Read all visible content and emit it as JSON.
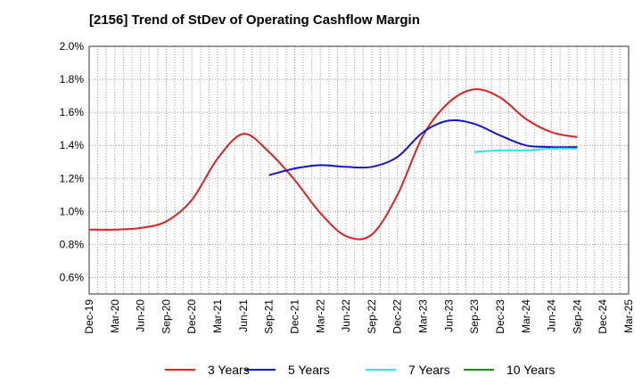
{
  "chart_data": {
    "type": "line",
    "title": "[2156]  Trend of StDev of Operating Cashflow Margin",
    "xlabel": "",
    "ylabel": "",
    "x": [
      "Dec-19",
      "Mar-20",
      "Jun-20",
      "Sep-20",
      "Dec-20",
      "Mar-21",
      "Jun-21",
      "Sep-21",
      "Dec-21",
      "Mar-22",
      "Jun-22",
      "Sep-22",
      "Dec-22",
      "Mar-23",
      "Jun-23",
      "Sep-23",
      "Dec-23",
      "Mar-24",
      "Jun-24",
      "Sep-24",
      "Dec-24",
      "Mar-25"
    ],
    "ylim": [
      0.5,
      2.0
    ],
    "yticks": [
      "0.6%",
      "0.8%",
      "1.0%",
      "1.2%",
      "1.4%",
      "1.6%",
      "1.8%",
      "2.0%"
    ],
    "ytick_values": [
      0.6,
      0.8,
      1.0,
      1.2,
      1.4,
      1.6,
      1.8,
      2.0
    ],
    "grid": true,
    "legend_position": "bottom",
    "series": [
      {
        "name": "3 Years",
        "color": "#e0201e",
        "values": [
          0.89,
          0.89,
          0.9,
          0.94,
          1.07,
          1.32,
          1.47,
          1.36,
          1.19,
          0.99,
          0.85,
          0.86,
          1.1,
          1.46,
          1.66,
          1.74,
          1.69,
          1.56,
          1.48,
          1.45,
          null,
          null
        ]
      },
      {
        "name": "5 Years",
        "color": "#1414c8",
        "values": [
          null,
          null,
          null,
          null,
          null,
          null,
          null,
          1.22,
          1.26,
          1.28,
          1.27,
          1.27,
          1.33,
          1.48,
          1.55,
          1.53,
          1.46,
          1.4,
          1.39,
          1.39,
          null,
          null
        ]
      },
      {
        "name": "7 Years",
        "color": "#2ce4e4",
        "values": [
          null,
          null,
          null,
          null,
          null,
          null,
          null,
          null,
          null,
          null,
          null,
          null,
          null,
          null,
          null,
          1.36,
          1.37,
          1.37,
          1.38,
          1.38,
          null,
          null
        ]
      },
      {
        "name": "10 Years",
        "color": "#1a8c1a",
        "values": [
          null,
          null,
          null,
          null,
          null,
          null,
          null,
          null,
          null,
          null,
          null,
          null,
          null,
          null,
          null,
          null,
          null,
          null,
          null,
          null,
          null,
          null
        ]
      }
    ]
  }
}
